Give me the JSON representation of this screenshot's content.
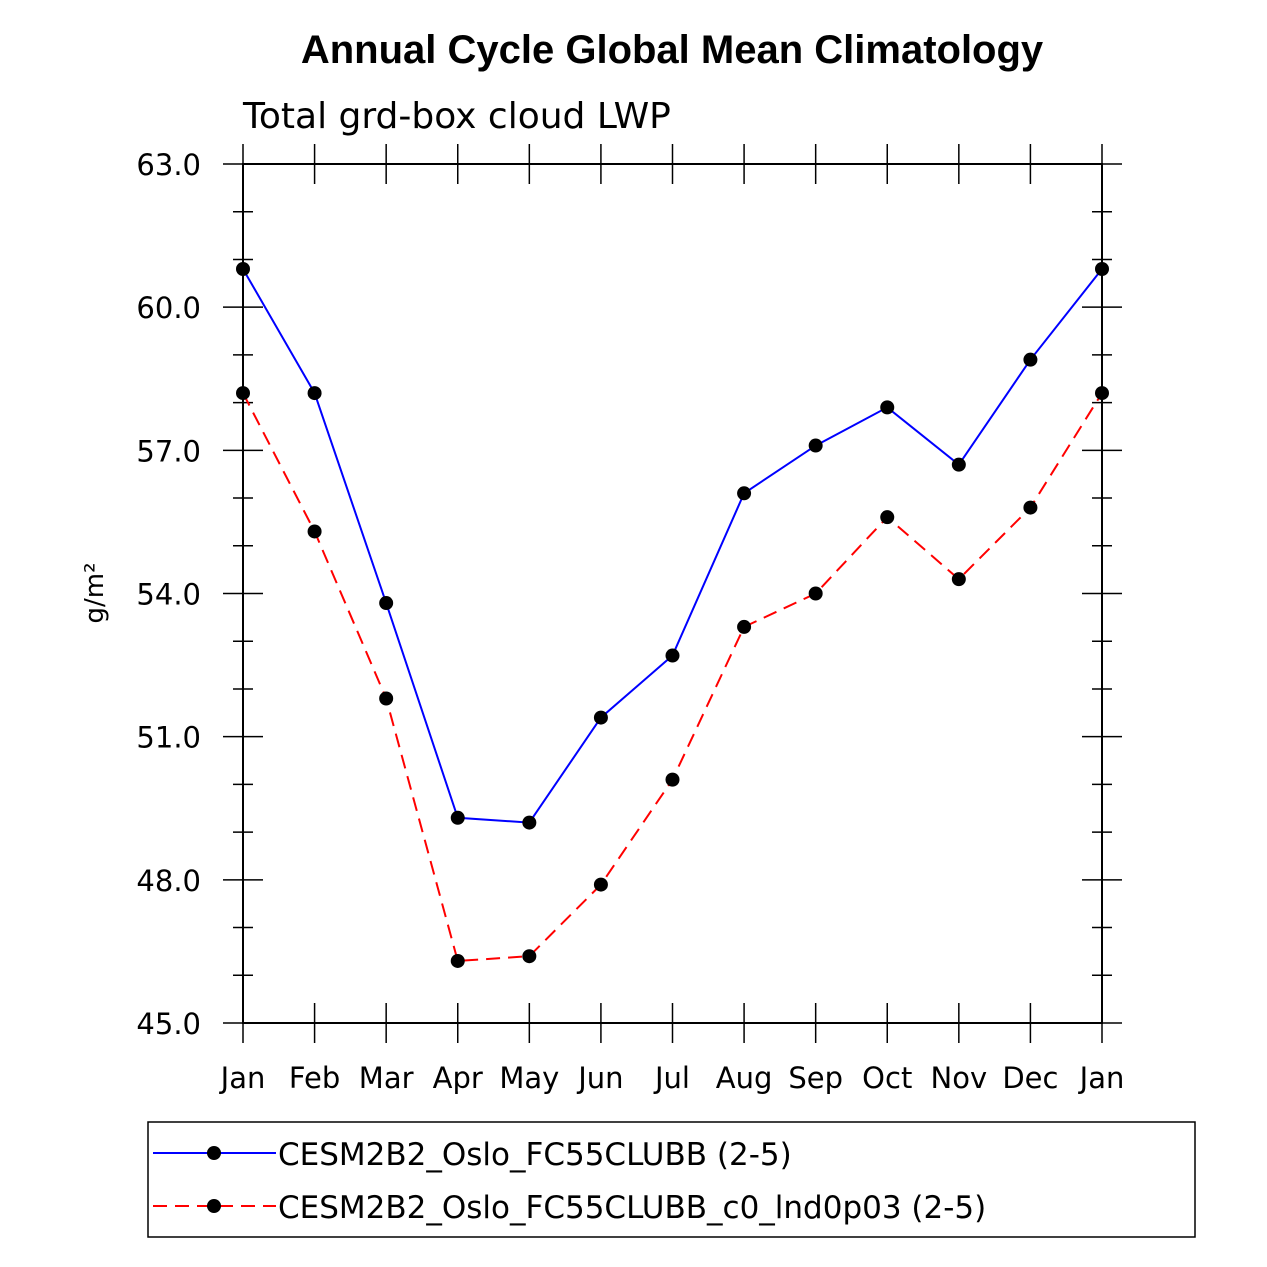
{
  "chart_data": {
    "type": "line",
    "title": "Annual Cycle Global Mean Climatology",
    "subtitle": "Total grd-box cloud LWP",
    "ylabel": "g/m²",
    "xlabel": "",
    "categories": [
      "Jan",
      "Feb",
      "Mar",
      "Apr",
      "May",
      "Jun",
      "Jul",
      "Aug",
      "Sep",
      "Oct",
      "Nov",
      "Dec",
      "Jan"
    ],
    "ylim": [
      45.0,
      63.0
    ],
    "yticks": [
      "45.0",
      "48.0",
      "51.0",
      "54.0",
      "57.0",
      "60.0",
      "63.0"
    ],
    "series": [
      {
        "name": "CESM2B2_Oslo_FC55CLUBB (2-5)",
        "color": "#0000ff",
        "dash": "solid",
        "values": [
          60.8,
          58.2,
          53.8,
          49.3,
          49.2,
          51.4,
          52.7,
          56.1,
          57.1,
          57.9,
          56.7,
          58.9,
          60.8
        ]
      },
      {
        "name": "CESM2B2_Oslo_FC55CLUBB_c0_lnd0p03 (2-5)",
        "color": "#ff0000",
        "dash": "dashed",
        "values": [
          58.2,
          55.3,
          51.8,
          46.3,
          46.4,
          47.9,
          50.1,
          53.3,
          54.0,
          55.6,
          54.3,
          55.8,
          58.2
        ]
      }
    ],
    "legend_position": "bottom"
  }
}
